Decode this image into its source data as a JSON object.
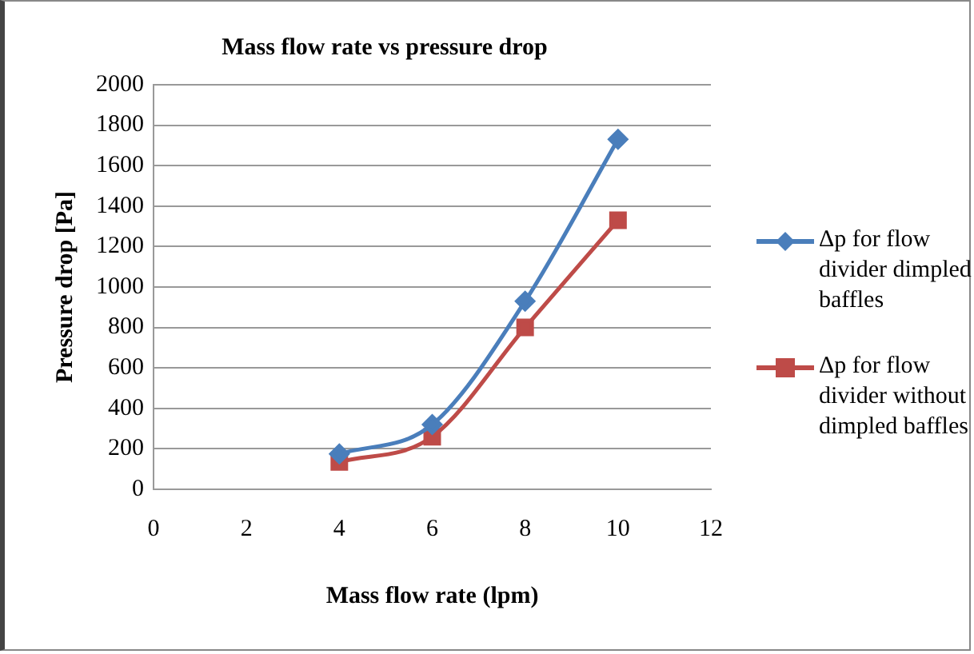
{
  "chart_data": {
    "type": "line",
    "title": "Mass flow rate vs pressure drop",
    "xlabel": "Mass flow rate (lpm)",
    "ylabel": "Pressure drop [Pa]",
    "x": [
      4,
      6,
      8,
      10
    ],
    "series": [
      {
        "name": "Δp for flow divider dimpled baffles",
        "color": "#4a7ebb",
        "marker": "diamond",
        "values": [
          175,
          320,
          930,
          1730
        ]
      },
      {
        "name": "Δp for flow divider without dimpled baffles",
        "color": "#be4b48",
        "marker": "square",
        "values": [
          135,
          260,
          800,
          1330
        ]
      }
    ],
    "xlim": [
      0,
      12
    ],
    "xticks": [
      0,
      2,
      4,
      6,
      8,
      10,
      12
    ],
    "ylim": [
      0,
      2000
    ],
    "yticks": [
      0,
      200,
      400,
      600,
      800,
      1000,
      1200,
      1400,
      1600,
      1800,
      2000
    ],
    "grid": "y",
    "legend": "right",
    "line_style": "solid"
  }
}
